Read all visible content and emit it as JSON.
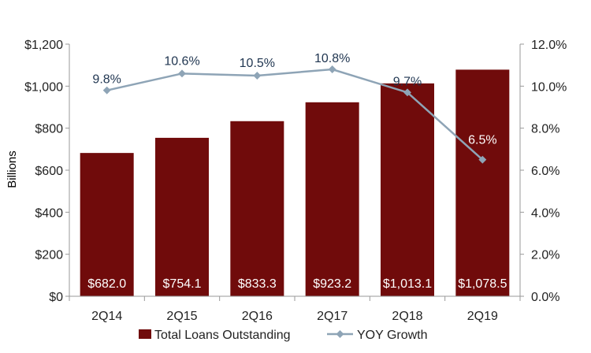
{
  "chart_data": {
    "type": "bar",
    "categories": [
      "2Q14",
      "2Q15",
      "2Q16",
      "2Q17",
      "2Q18",
      "2Q19"
    ],
    "series": [
      {
        "name": "Total Loans Outstanding",
        "type": "bar",
        "axis": "left",
        "values": [
          682.0,
          754.1,
          833.3,
          923.2,
          1013.1,
          1078.5
        ],
        "labels": [
          "$682.0",
          "$754.1",
          "$833.3",
          "$923.2",
          "$1,013.1",
          "$1,078.5"
        ],
        "color": "#700B0B"
      },
      {
        "name": "YOY Growth",
        "type": "line",
        "axis": "right",
        "values": [
          9.8,
          10.6,
          10.5,
          10.8,
          9.7,
          6.5
        ],
        "labels": [
          "9.8%",
          "10.6%",
          "10.5%",
          "10.8%",
          "9.7%",
          "6.5%"
        ],
        "color": "#8EA4B6"
      }
    ],
    "ylabel": "Billions",
    "ylim": [
      0,
      1200
    ],
    "yticks": [
      "$0",
      "$200",
      "$400",
      "$600",
      "$800",
      "$1,000",
      "$1,200"
    ],
    "y2lim": [
      0,
      12
    ],
    "y2ticks": [
      "0.0%",
      "2.0%",
      "4.0%",
      "6.0%",
      "8.0%",
      "10.0%",
      "12.0%"
    ],
    "grid": false,
    "legend": "bottom"
  }
}
